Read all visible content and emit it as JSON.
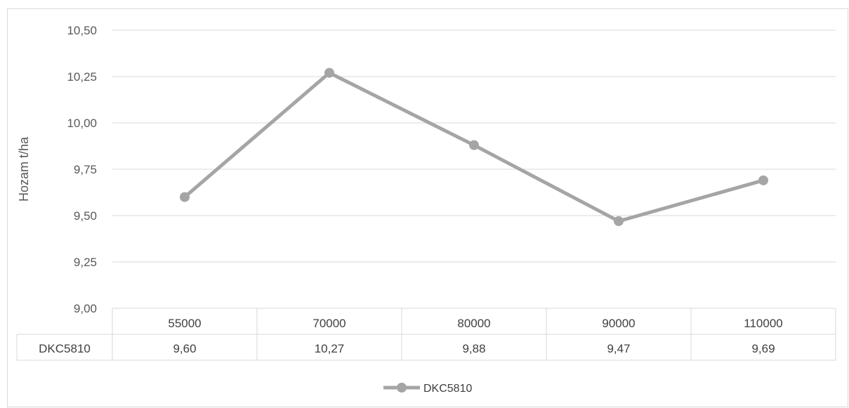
{
  "chart_data": {
    "type": "line",
    "title": "",
    "xlabel": "",
    "ylabel": "Hozam t/ha",
    "categories": [
      "55000",
      "70000",
      "80000",
      "90000",
      "110000"
    ],
    "series": [
      {
        "name": "DKC5810",
        "values": [
          9.6,
          10.27,
          9.88,
          9.47,
          9.69
        ],
        "labels": [
          "9,60",
          "10,27",
          "9,88",
          "9,47",
          "9,69"
        ],
        "color": "#a5a5a5"
      }
    ],
    "ylim": [
      9.0,
      10.5
    ],
    "yticks": [
      9.0,
      9.25,
      9.5,
      9.75,
      10.0,
      10.25,
      10.5
    ],
    "ytick_labels": [
      "9,00",
      "9,25",
      "9,50",
      "9,75",
      "10,00",
      "10,25",
      "10,50"
    ],
    "grid": true,
    "data_table": true,
    "legend_position": "bottom",
    "gridline_color": "#d9d9d9"
  }
}
